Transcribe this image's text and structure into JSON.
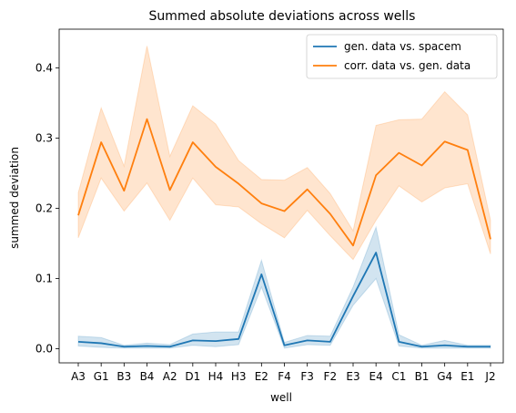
{
  "chart_data": {
    "type": "line",
    "title": "Summed absolute deviations across wells",
    "xlabel": "well",
    "ylabel": "summed deviation",
    "categories": [
      "A3",
      "G1",
      "B3",
      "B4",
      "A2",
      "D1",
      "H4",
      "H3",
      "E2",
      "F4",
      "F3",
      "F2",
      "E3",
      "E4",
      "C1",
      "B1",
      "G4",
      "E1",
      "J2"
    ],
    "ylim": [
      -0.02,
      0.455
    ],
    "yticks": [
      0.0,
      0.1,
      0.2,
      0.3,
      0.4
    ],
    "ytick_labels": [
      "0.0",
      "0.1",
      "0.2",
      "0.3",
      "0.4"
    ],
    "grid": false,
    "legend_position": "top-right",
    "series": [
      {
        "name": "gen. data vs. spacem",
        "color": "#1f77b4",
        "values": [
          0.01,
          0.008,
          0.003,
          0.004,
          0.003,
          0.012,
          0.011,
          0.014,
          0.106,
          0.005,
          0.012,
          0.01,
          0.075,
          0.137,
          0.01,
          0.003,
          0.005,
          0.003,
          0.003
        ],
        "lower": [
          0.004,
          0.002,
          0.001,
          0.001,
          0.001,
          0.005,
          0.003,
          0.006,
          0.088,
          0.001,
          0.006,
          0.005,
          0.062,
          0.1,
          0.004,
          0.001,
          0.001,
          0.001,
          0.001
        ],
        "upper": [
          0.018,
          0.016,
          0.005,
          0.008,
          0.006,
          0.021,
          0.024,
          0.024,
          0.126,
          0.009,
          0.019,
          0.018,
          0.088,
          0.173,
          0.02,
          0.005,
          0.012,
          0.005,
          0.005
        ]
      },
      {
        "name": "corr. data vs. gen. data",
        "color": "#ff7f0e",
        "values": [
          0.19,
          0.294,
          0.225,
          0.327,
          0.226,
          0.294,
          0.259,
          0.235,
          0.207,
          0.196,
          0.227,
          0.192,
          0.147,
          0.247,
          0.279,
          0.261,
          0.295,
          0.283,
          0.156
        ],
        "lower": [
          0.158,
          0.243,
          0.196,
          0.236,
          0.183,
          0.243,
          0.205,
          0.202,
          0.178,
          0.158,
          0.197,
          0.161,
          0.127,
          0.183,
          0.232,
          0.209,
          0.229,
          0.235,
          0.135
        ],
        "upper": [
          0.222,
          0.343,
          0.26,
          0.431,
          0.274,
          0.346,
          0.32,
          0.268,
          0.241,
          0.24,
          0.258,
          0.221,
          0.168,
          0.318,
          0.326,
          0.327,
          0.366,
          0.333,
          0.183
        ]
      }
    ]
  }
}
